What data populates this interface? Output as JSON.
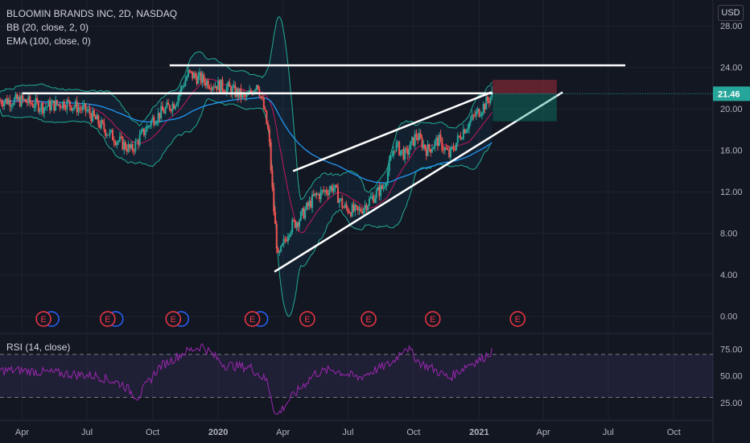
{
  "header": {
    "symbol": "BLOOMIN BRANDS INC, 2D, NASDAQ",
    "bb": "BB (20, close, 2, 0)",
    "ema": "EMA (100, close, 0)",
    "currency": "USD"
  },
  "rsi_label": "RSI (14, close)",
  "earnings_marker": "E",
  "chart_data": [
    {
      "type": "candlestick",
      "title": "BLOOMIN BRANDS INC, 2D, NASDAQ",
      "x_ticks": [
        "Apr",
        "Jul",
        "Oct",
        "2020",
        "Apr",
        "Jul",
        "Oct",
        "2021",
        "Apr",
        "Jul",
        "Oct"
      ],
      "y_ticks": [
        0.0,
        4.0,
        8.0,
        12.0,
        16.0,
        20.0,
        24.0,
        28.0
      ],
      "ylim": [
        -1.5,
        30.5
      ],
      "last_price": "21.46",
      "anchors": {
        "x": [
          "2019-04-01",
          "2019-05-01",
          "2019-06-01",
          "2019-07-01",
          "2019-08-01",
          "2019-09-01",
          "2019-10-01",
          "2019-11-01",
          "2019-11-20",
          "2019-12-20",
          "2020-01-15",
          "2020-02-10",
          "2020-02-25",
          "2020-03-05",
          "2020-03-12",
          "2020-03-18",
          "2020-03-25",
          "2020-04-10",
          "2020-04-25",
          "2020-05-15",
          "2020-06-10",
          "2020-06-25",
          "2020-07-15",
          "2020-08-05",
          "2020-08-20",
          "2020-09-05",
          "2020-09-20",
          "2020-10-05",
          "2020-10-20",
          "2020-11-05",
          "2020-11-20",
          "2020-12-10",
          "2020-12-28",
          "2021-01-10",
          "2021-01-20"
        ],
        "close": [
          20.8,
          20.2,
          20.6,
          19.8,
          17.6,
          16.0,
          19.0,
          20.6,
          23.4,
          22.5,
          22.0,
          21.0,
          22.6,
          20.0,
          17.5,
          11.0,
          5.5,
          8.5,
          9.5,
          11.5,
          12.5,
          10.5,
          10.0,
          11.5,
          12.5,
          16.5,
          15.5,
          17.5,
          16.0,
          17.0,
          15.5,
          18.0,
          19.5,
          20.5,
          21.46
        ]
      },
      "series": [
        {
          "name": "BB (20, close, 2, 0)",
          "role": "bollinger bands"
        },
        {
          "name": "EMA (100, close, 0)",
          "role": "moving average"
        }
      ],
      "drawings": {
        "resistance_line": [
          [
            "2019-10-25",
            24.2
          ],
          [
            "2021-07-25",
            24.2
          ]
        ],
        "breakdown_level": [
          [
            "2019-04-01",
            21.5
          ],
          [
            "2021-01-20",
            21.5
          ]
        ],
        "wedge_upper": [
          [
            "2020-04-15",
            14.0
          ],
          [
            "2021-01-18",
            21.6
          ]
        ],
        "wedge_lower": [
          [
            "2020-03-20",
            4.3
          ],
          [
            "2021-04-28",
            21.6
          ]
        ],
        "short_position": {
          "from": "2021-01-20",
          "to": "2021-04-20",
          "entry": 21.46,
          "stop": 22.8,
          "target": 18.8
        }
      },
      "earnings_dates": [
        "2019-05-01",
        "2019-07-30",
        "2019-10-30",
        "2020-02-18",
        "2020-05-05",
        "2020-07-30",
        "2020-10-28",
        "2021-02-24"
      ]
    },
    {
      "type": "line",
      "title": "RSI (14, close)",
      "y_ticks": [
        25.0,
        50.0,
        75.0
      ],
      "ylim": [
        10,
        85
      ],
      "bands": [
        30,
        70
      ],
      "anchors": {
        "x": [
          "2019-04-01",
          "2019-06-01",
          "2019-07-15",
          "2019-08-20",
          "2019-09-10",
          "2019-10-10",
          "2019-11-15",
          "2019-12-10",
          "2020-01-10",
          "2020-02-15",
          "2020-03-10",
          "2020-03-22",
          "2020-04-10",
          "2020-05-15",
          "2020-06-10",
          "2020-07-15",
          "2020-08-10",
          "2020-09-01",
          "2020-09-20",
          "2020-10-10",
          "2020-10-30",
          "2020-11-20",
          "2020-12-15",
          "2021-01-05",
          "2021-01-20"
        ],
        "values": [
          55,
          52,
          50,
          42,
          30,
          58,
          72,
          78,
          60,
          58,
          45,
          12,
          28,
          52,
          56,
          48,
          56,
          62,
          78,
          62,
          56,
          48,
          60,
          66,
          74
        ]
      }
    }
  ]
}
